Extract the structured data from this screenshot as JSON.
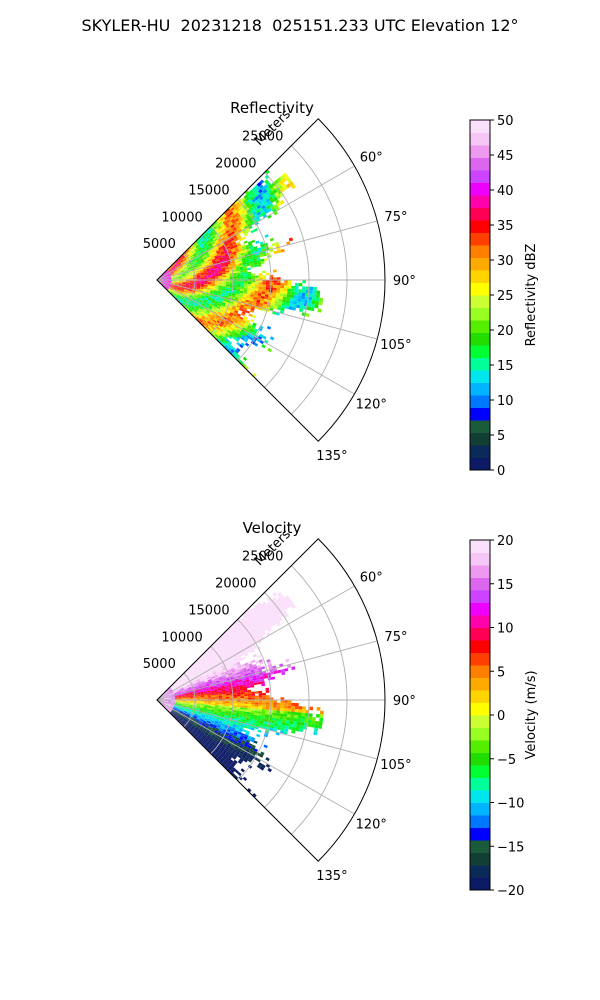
{
  "page": {
    "title": "SKYLER-HU  20231218  025151.233 UTC Elevation 12°"
  },
  "chart_data": [
    {
      "type": "heatmap",
      "projection": "polar-sector",
      "title": "Reflectivity",
      "range_label": "Meters",
      "theta_range_deg": [
        45,
        135
      ],
      "theta_ticks": [
        "60°",
        "75°",
        "90°",
        "105°",
        "120°",
        "135°"
      ],
      "theta_tick_values": [
        60,
        75,
        90,
        105,
        120,
        135
      ],
      "r_max": 30000,
      "r_ticks": [
        "5000",
        "10000",
        "15000",
        "20000",
        "25000"
      ],
      "r_tick_values": [
        5000,
        10000,
        15000,
        20000,
        25000
      ],
      "grid": true,
      "echo_extent_m": 22000,
      "colorbar": {
        "label": "Reflectivity dBZ",
        "range": [
          0,
          50
        ],
        "ticks": [
          "0",
          "5",
          "10",
          "15",
          "20",
          "25",
          "30",
          "35",
          "40",
          "45",
          "50"
        ],
        "tick_values": [
          0,
          5,
          10,
          15,
          20,
          25,
          30,
          35,
          40,
          45,
          50
        ],
        "colors": [
          "#0d1a66",
          "#0b2a5a",
          "#123f33",
          "#1b5a3a",
          "#0000ff",
          "#0077ff",
          "#00b4ff",
          "#00e6ee",
          "#00ff99",
          "#00ff33",
          "#22dd00",
          "#55ee00",
          "#99ff22",
          "#ccff33",
          "#ffff00",
          "#ffd400",
          "#ffaa00",
          "#ff7f00",
          "#ff3f00",
          "#ff0000",
          "#ff0055",
          "#ff00aa",
          "#ee00ff",
          "#cc44ff",
          "#dd66ee",
          "#ee99f0",
          "#f6c6f6",
          "#fbe0fb"
        ]
      }
    },
    {
      "type": "heatmap",
      "projection": "polar-sector",
      "title": "Velocity",
      "range_label": "Meters",
      "theta_range_deg": [
        45,
        135
      ],
      "theta_ticks": [
        "60°",
        "75°",
        "90°",
        "105°",
        "120°",
        "135°"
      ],
      "theta_tick_values": [
        60,
        75,
        90,
        105,
        120,
        135
      ],
      "r_max": 30000,
      "r_ticks": [
        "5000",
        "10000",
        "15000",
        "20000",
        "25000"
      ],
      "r_tick_values": [
        5000,
        10000,
        15000,
        20000,
        25000
      ],
      "grid": true,
      "echo_extent_m": 22000,
      "colorbar": {
        "label": "Velocity (m/s)",
        "range": [
          -20,
          20
        ],
        "ticks": [
          "−20",
          "−15",
          "−10",
          "−5",
          "0",
          "5",
          "10",
          "15",
          "20"
        ],
        "tick_values": [
          -20,
          -15,
          -10,
          -5,
          0,
          5,
          10,
          15,
          20
        ],
        "colors": [
          "#0d1a66",
          "#0b2a5a",
          "#123f33",
          "#1b5a3a",
          "#0000ff",
          "#0077ff",
          "#00b4ff",
          "#00e6ee",
          "#00ff99",
          "#00ff33",
          "#22dd00",
          "#55ee00",
          "#99ff22",
          "#ccff33",
          "#ffff00",
          "#ffd400",
          "#ffaa00",
          "#ff7f00",
          "#ff3f00",
          "#ff0000",
          "#ff0055",
          "#ff00aa",
          "#ee00ff",
          "#cc44ff",
          "#dd66ee",
          "#ee99f0",
          "#f6c6f6",
          "#fbe0fb"
        ]
      }
    }
  ]
}
